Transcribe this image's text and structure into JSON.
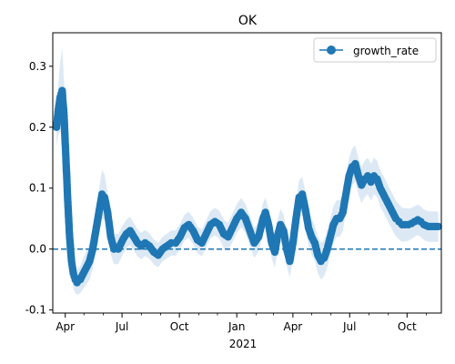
{
  "chart_data": {
    "type": "line",
    "title": "OK",
    "xlabel": "",
    "ylabel": "",
    "year_label": "2021",
    "x_tick_labels": [
      "Apr",
      "Jul",
      "Oct",
      "Jan",
      "Apr",
      "Jul",
      "Oct"
    ],
    "y_tick_labels": [
      "-0.1",
      "0.0",
      "0.1",
      "0.2",
      "0.3"
    ],
    "ylim": [
      -0.105,
      0.355
    ],
    "xlim": [
      "2020-03-12",
      "2021-11-25"
    ],
    "grid": false,
    "legend": {
      "position": "top-right",
      "entries": [
        "growth_rate"
      ]
    },
    "reference_line": {
      "y": 0.0,
      "style": "dashed"
    },
    "series": [
      {
        "name": "growth_rate",
        "color": "#1f77b4",
        "band_color": "#dce9f5",
        "points": [
          [
            "2020-03-18",
            0.2
          ],
          [
            "2020-03-21",
            0.23
          ],
          [
            "2020-03-24",
            0.25
          ],
          [
            "2020-03-27",
            0.26
          ],
          [
            "2020-03-30",
            0.22
          ],
          [
            "2020-04-02",
            0.15
          ],
          [
            "2020-04-05",
            0.08
          ],
          [
            "2020-04-08",
            0.02
          ],
          [
            "2020-04-11",
            -0.02
          ],
          [
            "2020-04-14",
            -0.04
          ],
          [
            "2020-04-17",
            -0.05
          ],
          [
            "2020-04-20",
            -0.055
          ],
          [
            "2020-04-25",
            -0.05
          ],
          [
            "2020-04-30",
            -0.04
          ],
          [
            "2020-05-05",
            -0.03
          ],
          [
            "2020-05-10",
            -0.02
          ],
          [
            "2020-05-15",
            0.0
          ],
          [
            "2020-05-20",
            0.03
          ],
          [
            "2020-05-25",
            0.06
          ],
          [
            "2020-05-30",
            0.09
          ],
          [
            "2020-06-03",
            0.085
          ],
          [
            "2020-06-08",
            0.06
          ],
          [
            "2020-06-13",
            0.02
          ],
          [
            "2020-06-18",
            0.0
          ],
          [
            "2020-06-25",
            0.0
          ],
          [
            "2020-07-02",
            0.015
          ],
          [
            "2020-07-08",
            0.025
          ],
          [
            "2020-07-14",
            0.03
          ],
          [
            "2020-07-20",
            0.02
          ],
          [
            "2020-07-26",
            0.01
          ],
          [
            "2020-08-01",
            0.005
          ],
          [
            "2020-08-07",
            0.01
          ],
          [
            "2020-08-14",
            0.005
          ],
          [
            "2020-08-21",
            -0.005
          ],
          [
            "2020-08-28",
            -0.01
          ],
          [
            "2020-09-04",
            0.0
          ],
          [
            "2020-09-11",
            0.005
          ],
          [
            "2020-09-18",
            0.01
          ],
          [
            "2020-09-25",
            0.01
          ],
          [
            "2020-10-02",
            0.02
          ],
          [
            "2020-10-09",
            0.035
          ],
          [
            "2020-10-16",
            0.04
          ],
          [
            "2020-10-23",
            0.03
          ],
          [
            "2020-10-30",
            0.015
          ],
          [
            "2020-11-06",
            0.01
          ],
          [
            "2020-11-13",
            0.025
          ],
          [
            "2020-11-20",
            0.04
          ],
          [
            "2020-11-27",
            0.045
          ],
          [
            "2020-12-04",
            0.04
          ],
          [
            "2020-12-11",
            0.025
          ],
          [
            "2020-12-18",
            0.02
          ],
          [
            "2020-12-25",
            0.035
          ],
          [
            "2021-01-01",
            0.05
          ],
          [
            "2021-01-08",
            0.06
          ],
          [
            "2021-01-15",
            0.05
          ],
          [
            "2021-01-22",
            0.03
          ],
          [
            "2021-01-29",
            0.01
          ],
          [
            "2021-02-05",
            0.02
          ],
          [
            "2021-02-12",
            0.05
          ],
          [
            "2021-02-16",
            0.06
          ],
          [
            "2021-02-21",
            0.04
          ],
          [
            "2021-02-26",
            0.01
          ],
          [
            "2021-03-03",
            -0.005
          ],
          [
            "2021-03-07",
            0.02
          ],
          [
            "2021-03-12",
            0.04
          ],
          [
            "2021-03-17",
            0.03
          ],
          [
            "2021-03-22",
            0.0
          ],
          [
            "2021-03-27",
            -0.02
          ],
          [
            "2021-04-01",
            0.01
          ],
          [
            "2021-04-06",
            0.05
          ],
          [
            "2021-04-11",
            0.085
          ],
          [
            "2021-04-16",
            0.09
          ],
          [
            "2021-04-21",
            0.065
          ],
          [
            "2021-04-26",
            0.035
          ],
          [
            "2021-05-01",
            0.02
          ],
          [
            "2021-05-06",
            0.01
          ],
          [
            "2021-05-11",
            -0.01
          ],
          [
            "2021-05-16",
            -0.02
          ],
          [
            "2021-05-21",
            -0.015
          ],
          [
            "2021-05-26",
            0.0
          ],
          [
            "2021-05-31",
            0.02
          ],
          [
            "2021-06-05",
            0.04
          ],
          [
            "2021-06-10",
            0.05
          ],
          [
            "2021-06-15",
            0.05
          ],
          [
            "2021-06-20",
            0.06
          ],
          [
            "2021-06-25",
            0.09
          ],
          [
            "2021-06-30",
            0.12
          ],
          [
            "2021-07-05",
            0.135
          ],
          [
            "2021-07-10",
            0.14
          ],
          [
            "2021-07-15",
            0.12
          ],
          [
            "2021-07-20",
            0.105
          ],
          [
            "2021-07-25",
            0.115
          ],
          [
            "2021-07-30",
            0.12
          ],
          [
            "2021-08-04",
            0.11
          ],
          [
            "2021-08-09",
            0.12
          ],
          [
            "2021-08-14",
            0.115
          ],
          [
            "2021-08-19",
            0.1
          ],
          [
            "2021-08-24",
            0.09
          ],
          [
            "2021-08-29",
            0.08
          ],
          [
            "2021-09-03",
            0.07
          ],
          [
            "2021-09-08",
            0.06
          ],
          [
            "2021-09-13",
            0.05
          ],
          [
            "2021-09-18",
            0.045
          ],
          [
            "2021-09-23",
            0.04
          ],
          [
            "2021-09-28",
            0.04
          ],
          [
            "2021-10-03",
            0.04
          ],
          [
            "2021-10-08",
            0.042
          ],
          [
            "2021-10-13",
            0.045
          ],
          [
            "2021-10-18",
            0.048
          ],
          [
            "2021-10-23",
            0.045
          ],
          [
            "2021-10-28",
            0.04
          ],
          [
            "2021-11-04",
            0.037
          ],
          [
            "2021-11-12",
            0.037
          ],
          [
            "2021-11-20",
            0.037
          ]
        ],
        "band_halfwidth": [
          [
            "2020-03-18",
            0.03
          ],
          [
            "2020-03-27",
            0.07
          ],
          [
            "2020-04-08",
            0.03
          ],
          [
            "2020-04-20",
            0.02
          ],
          [
            "2020-05-30",
            0.04
          ],
          [
            "2020-06-18",
            0.025
          ],
          [
            "2020-08-28",
            0.02
          ],
          [
            "2021-02-16",
            0.025
          ],
          [
            "2021-05-16",
            0.03
          ],
          [
            "2021-07-10",
            0.03
          ],
          [
            "2021-09-08",
            0.03
          ],
          [
            "2021-10-13",
            0.025
          ],
          [
            "2021-11-20",
            0.025
          ]
        ]
      }
    ]
  }
}
